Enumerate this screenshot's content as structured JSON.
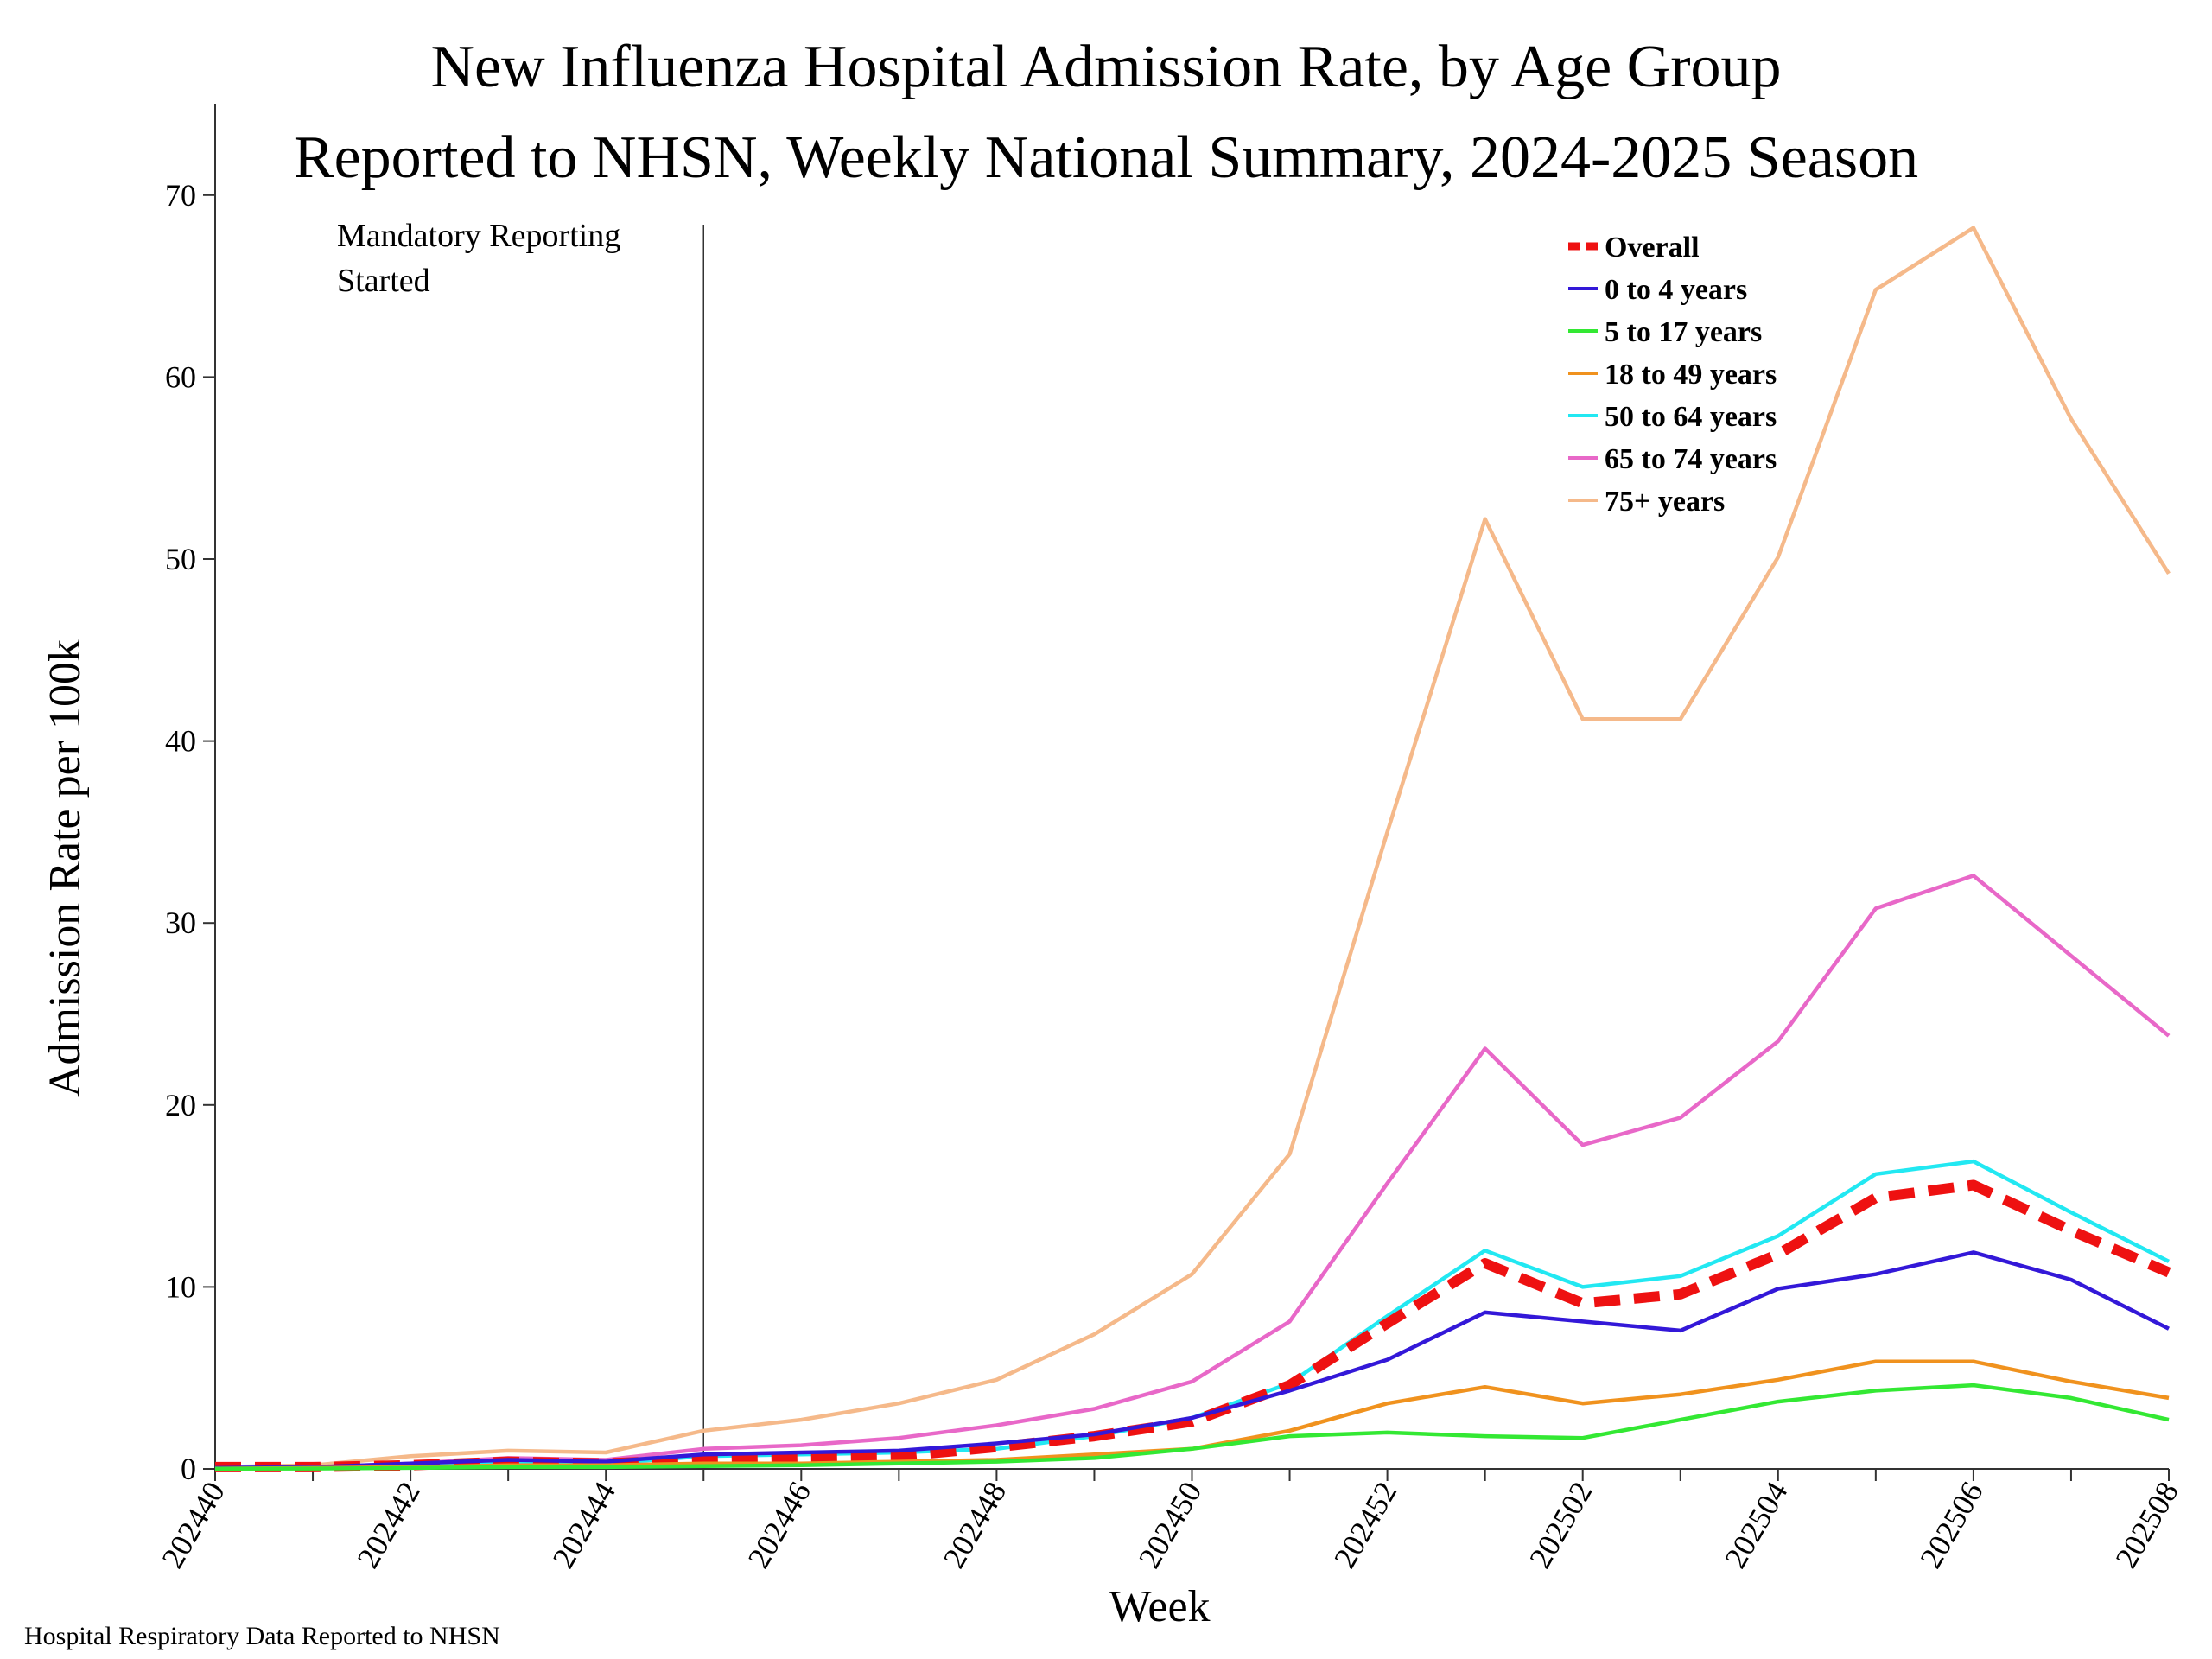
{
  "chart_data": {
    "type": "line",
    "title": "New Influenza Hospital Admission Rate, by Age Group",
    "subtitle": "Reported to NHSN, Weekly National Summary, 2024-2025 Season",
    "xlabel": "Week",
    "ylabel": "Admission Rate per 100k",
    "ylim": [
      0,
      75
    ],
    "yticks": [
      0,
      10,
      20,
      30,
      40,
      50,
      60,
      70
    ],
    "x": [
      "202440",
      "202441",
      "202442",
      "202443",
      "202444",
      "202445",
      "202446",
      "202447",
      "202448",
      "202449",
      "202450",
      "202451",
      "202452",
      "202501",
      "202502",
      "202503",
      "202504",
      "202505",
      "202506",
      "202507",
      "202508"
    ],
    "xtick_labels": [
      "202440",
      "202442",
      "202444",
      "202446",
      "202448",
      "202450",
      "202452",
      "202502",
      "202504",
      "202506",
      "202508"
    ],
    "annotation": {
      "text_line1": "Mandatory Reporting",
      "text_line2": "Started",
      "x": "202445"
    },
    "legend_position": "top-right",
    "series": [
      {
        "name": "75+ years",
        "color": "#F5B98A",
        "dashed": false,
        "values": [
          0.1,
          0.2,
          0.7,
          1.0,
          0.9,
          2.1,
          2.7,
          3.6,
          4.9,
          7.4,
          10.7,
          17.3,
          35.0,
          52.2,
          41.2,
          41.2,
          50.1,
          64.8,
          68.2,
          57.7,
          49.2
        ]
      },
      {
        "name": "65 to 74 years",
        "color": "#E868C8",
        "dashed": false,
        "values": [
          0.1,
          0.1,
          0.3,
          0.6,
          0.5,
          1.1,
          1.3,
          1.7,
          2.4,
          3.3,
          4.8,
          8.1,
          15.7,
          23.1,
          17.8,
          19.3,
          23.5,
          30.8,
          32.6,
          28.2,
          23.8
        ]
      },
      {
        "name": "50 to 64 years",
        "color": "#22E8F2",
        "dashed": false,
        "values": [
          0.05,
          0.1,
          0.2,
          0.4,
          0.3,
          0.7,
          0.8,
          0.9,
          1.1,
          1.8,
          2.8,
          4.7,
          8.4,
          12.0,
          10.0,
          10.6,
          12.8,
          16.2,
          16.9,
          14.1,
          11.4
        ]
      },
      {
        "name": "Overall",
        "color": "#EE1111",
        "dashed": true,
        "values": [
          0.1,
          0.1,
          0.2,
          0.4,
          0.3,
          0.5,
          0.6,
          0.7,
          1.2,
          1.8,
          2.6,
          4.6,
          8.0,
          11.3,
          9.1,
          9.6,
          11.8,
          14.9,
          15.6,
          13.1,
          10.8
        ]
      },
      {
        "name": "0 to 4 years",
        "color": "#3318D8",
        "dashed": false,
        "values": [
          0.05,
          0.1,
          0.3,
          0.5,
          0.4,
          0.8,
          0.9,
          1.0,
          1.4,
          1.9,
          2.8,
          4.3,
          6.0,
          8.6,
          8.1,
          7.6,
          9.9,
          10.7,
          11.9,
          10.4,
          7.7
        ]
      },
      {
        "name": "18 to 49 years",
        "color": "#F0921E",
        "dashed": false,
        "values": [
          0.02,
          0.05,
          0.1,
          0.2,
          0.2,
          0.3,
          0.3,
          0.4,
          0.5,
          0.8,
          1.1,
          2.1,
          3.6,
          4.5,
          3.6,
          4.1,
          4.9,
          5.9,
          5.9,
          4.8,
          3.9
        ]
      },
      {
        "name": "5 to 17 years",
        "color": "#33E833",
        "dashed": false,
        "values": [
          0.01,
          0.02,
          0.05,
          0.1,
          0.1,
          0.15,
          0.2,
          0.3,
          0.4,
          0.6,
          1.1,
          1.8,
          2.0,
          1.8,
          1.7,
          2.7,
          3.7,
          4.3,
          4.6,
          3.9,
          2.7
        ]
      }
    ],
    "legend_order": [
      "Overall",
      "0 to 4 years",
      "5 to 17 years",
      "18 to 49 years",
      "50 to 64 years",
      "65 to 74 years",
      "75+ years"
    ]
  },
  "footer": "Hospital Respiratory Data Reported to NHSN"
}
